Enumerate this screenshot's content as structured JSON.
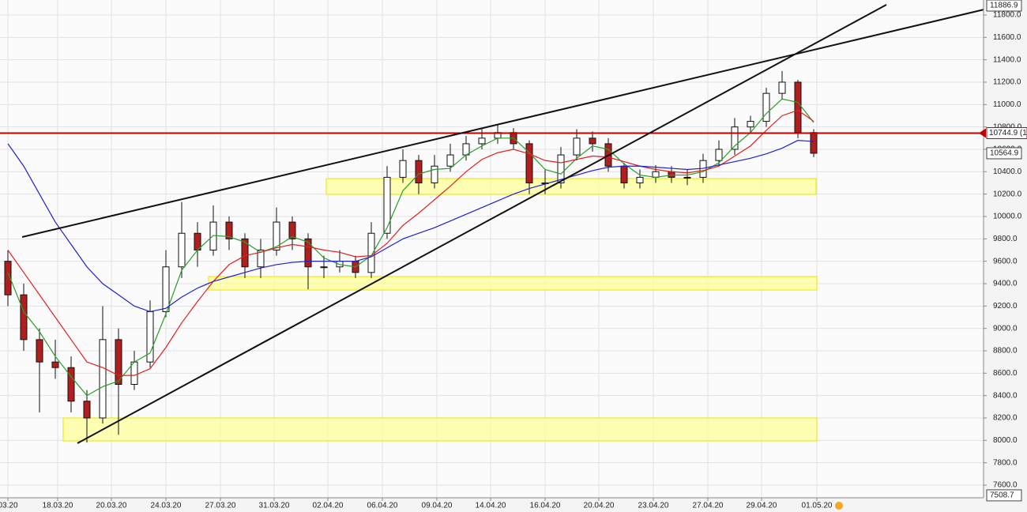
{
  "chart_data": {
    "type": "candlestick",
    "xlim": [
      0,
      62.25
    ],
    "xticks": [
      {
        "value": 0.5,
        "label": "03.20"
      },
      {
        "value": 3.65,
        "label": "18.03.20"
      },
      {
        "value": 7.05,
        "label": "20.03.20"
      },
      {
        "value": 10.5,
        "label": "24.03.20"
      },
      {
        "value": 13.95,
        "label": "27.03.20"
      },
      {
        "value": 17.35,
        "label": "31.03.20"
      },
      {
        "value": 20.75,
        "label": "02.04.20"
      },
      {
        "value": 24.2,
        "label": "06.04.20"
      },
      {
        "value": 27.65,
        "label": "09.04.20"
      },
      {
        "value": 31.05,
        "label": "14.04.20"
      },
      {
        "value": 34.5,
        "label": "16.04.20"
      },
      {
        "value": 37.9,
        "label": "20.04.20"
      },
      {
        "value": 41.35,
        "label": "23.04.20"
      },
      {
        "value": 44.8,
        "label": "27.04.20"
      },
      {
        "value": 48.2,
        "label": "29.04.20"
      },
      {
        "value": 51.7,
        "label": "01.05.20"
      }
    ],
    "ylim": [
      7487,
      11934
    ],
    "yticks": [
      {
        "value": 7600,
        "label": "7600.0"
      },
      {
        "value": 7800,
        "label": "7800.0"
      },
      {
        "value": 8000,
        "label": "8000.0"
      },
      {
        "value": 8200,
        "label": "8200.0"
      },
      {
        "value": 8400,
        "label": "8400.0"
      },
      {
        "value": 8600,
        "label": "8600.0"
      },
      {
        "value": 8800,
        "label": "8800.0"
      },
      {
        "value": 9000,
        "label": "9000.0"
      },
      {
        "value": 9200,
        "label": "9200.0"
      },
      {
        "value": 9400,
        "label": "9400.0"
      },
      {
        "value": 9600,
        "label": "9600.0"
      },
      {
        "value": 9800,
        "label": "9800.0"
      },
      {
        "value": 10000,
        "label": "10000.0"
      },
      {
        "value": 10200,
        "label": "10200.0"
      },
      {
        "value": 10400,
        "label": "10400.0"
      },
      {
        "value": 10600,
        "label": "10600.0"
      },
      {
        "value": 10800,
        "label": "10800.0"
      },
      {
        "value": 11000,
        "label": "11000.0"
      },
      {
        "value": 11200,
        "label": "11200.0"
      },
      {
        "value": 11400,
        "label": "11400.0"
      },
      {
        "value": 11600,
        "label": "11600.0"
      },
      {
        "value": 11800,
        "label": "11800.0"
      }
    ],
    "grid": true,
    "x": [
      0.5,
      1.5,
      2.5,
      3.5,
      4.5,
      5.5,
      6.5,
      7.5,
      8.5,
      9.5,
      10.5,
      11.5,
      12.5,
      13.5,
      14.5,
      15.5,
      16.5,
      17.5,
      18.5,
      19.5,
      20.5,
      21.5,
      22.5,
      23.5,
      24.5,
      25.5,
      26.5,
      27.5,
      28.5,
      29.5,
      30.5,
      31.5,
      32.5,
      33.5,
      34.5,
      35.5,
      36.5,
      37.5,
      38.5,
      39.5,
      40.5,
      41.5,
      42.5,
      43.5,
      44.5,
      45.5,
      46.5,
      47.5,
      48.5,
      49.5,
      50.5,
      51.5
    ],
    "open": [
      9600,
      9300,
      8900,
      8700,
      8650,
      8350,
      8200,
      8900,
      8500,
      8700,
      9150,
      9550,
      9850,
      9700,
      9950,
      9800,
      9550,
      9700,
      9950,
      9800,
      9550,
      9550,
      9600,
      9500,
      9850,
      10350,
      10500,
      10300,
      10450,
      10550,
      10650,
      10700,
      10750,
      10650,
      10300,
      10300,
      10550,
      10700,
      10650,
      10450,
      10300,
      10350,
      10400,
      10350,
      10350,
      10500,
      10600,
      10800,
      10850,
      11100,
      11200,
      10750
    ],
    "high": [
      9700,
      9400,
      9000,
      8900,
      8750,
      8450,
      9200,
      9000,
      8800,
      9250,
      9700,
      10130,
      9950,
      10100,
      10000,
      9850,
      9800,
      10080,
      10000,
      9850,
      9650,
      9700,
      9650,
      9950,
      10450,
      10600,
      10550,
      10550,
      10650,
      10720,
      10780,
      10820,
      10790,
      10680,
      10420,
      10620,
      10780,
      10760,
      10700,
      10480,
      10420,
      10460,
      10450,
      10420,
      10560,
      10680,
      10880,
      10900,
      11150,
      11300,
      11220,
      10780
    ],
    "low": [
      9200,
      8800,
      8250,
      8550,
      8250,
      7980,
      8150,
      8050,
      8450,
      8650,
      9100,
      9450,
      9550,
      9650,
      9700,
      9450,
      9450,
      9650,
      9700,
      9350,
      9450,
      9500,
      9450,
      9450,
      9800,
      10300,
      10200,
      10250,
      10400,
      10500,
      10600,
      10650,
      10600,
      10200,
      10200,
      10250,
      10500,
      10580,
      10400,
      10250,
      10250,
      10300,
      10300,
      10280,
      10300,
      10450,
      10550,
      10750,
      10800,
      11050,
      10700,
      10530
    ],
    "close": [
      9300,
      8900,
      8700,
      8650,
      8350,
      8200,
      8900,
      8500,
      8700,
      9150,
      9550,
      9850,
      9700,
      9950,
      9800,
      9550,
      9700,
      9950,
      9800,
      9550,
      9550,
      9600,
      9500,
      9850,
      10350,
      10500,
      10300,
      10450,
      10550,
      10650,
      10700,
      10750,
      10650,
      10300,
      10300,
      10550,
      10700,
      10650,
      10450,
      10300,
      10350,
      10400,
      10350,
      10350,
      10500,
      10600,
      10800,
      10850,
      11100,
      11200,
      10750,
      10565
    ],
    "up_color": "#ffffff",
    "down_color": "#b01e1e",
    "series": [
      {
        "color": "#2a9d2a",
        "values": [
          9500,
          9150,
          8970,
          8750,
          8570,
          8400,
          8480,
          8530,
          8700,
          8780,
          9130,
          9520,
          9700,
          9830,
          9820,
          9770,
          9680,
          9730,
          9820,
          9770,
          9630,
          9570,
          9550,
          9650,
          9900,
          10230,
          10380,
          10420,
          10430,
          10550,
          10630,
          10700,
          10700,
          10570,
          10420,
          10380,
          10520,
          10630,
          10600,
          10470,
          10370,
          10350,
          10370,
          10370,
          10400,
          10480,
          10630,
          10750,
          10920,
          11050,
          11020,
          10840
        ]
      },
      {
        "color": "#e02020",
        "values": [
          9700,
          9500,
          9300,
          9100,
          8900,
          8700,
          8650,
          8580,
          8580,
          8640,
          8830,
          9050,
          9240,
          9420,
          9570,
          9650,
          9680,
          9720,
          9750,
          9730,
          9700,
          9680,
          9640,
          9650,
          9760,
          9920,
          10030,
          10150,
          10270,
          10400,
          10510,
          10570,
          10600,
          10560,
          10500,
          10480,
          10510,
          10540,
          10530,
          10490,
          10450,
          10420,
          10400,
          10390,
          10410,
          10450,
          10540,
          10630,
          10770,
          10900,
          10950,
          10850
        ]
      },
      {
        "color": "#2020d0",
        "values": [
          10650,
          10450,
          10200,
          9950,
          9750,
          9550,
          9400,
          9300,
          9200,
          9150,
          9180,
          9280,
          9360,
          9420,
          9460,
          9500,
          9540,
          9570,
          9590,
          9600,
          9600,
          9600,
          9600,
          9640,
          9720,
          9800,
          9850,
          9900,
          9960,
          10020,
          10080,
          10140,
          10200,
          10250,
          10290,
          10330,
          10370,
          10410,
          10440,
          10450,
          10450,
          10440,
          10430,
          10420,
          10430,
          10460,
          10490,
          10520,
          10560,
          10610,
          10680,
          10670
        ]
      }
    ],
    "level": {
      "value": 10744.9,
      "label": "10744.9 (1",
      "color": "#c00000"
    },
    "max_price": 11886.9,
    "last_price": 10564.9,
    "min_price": 7508.7
  }
}
